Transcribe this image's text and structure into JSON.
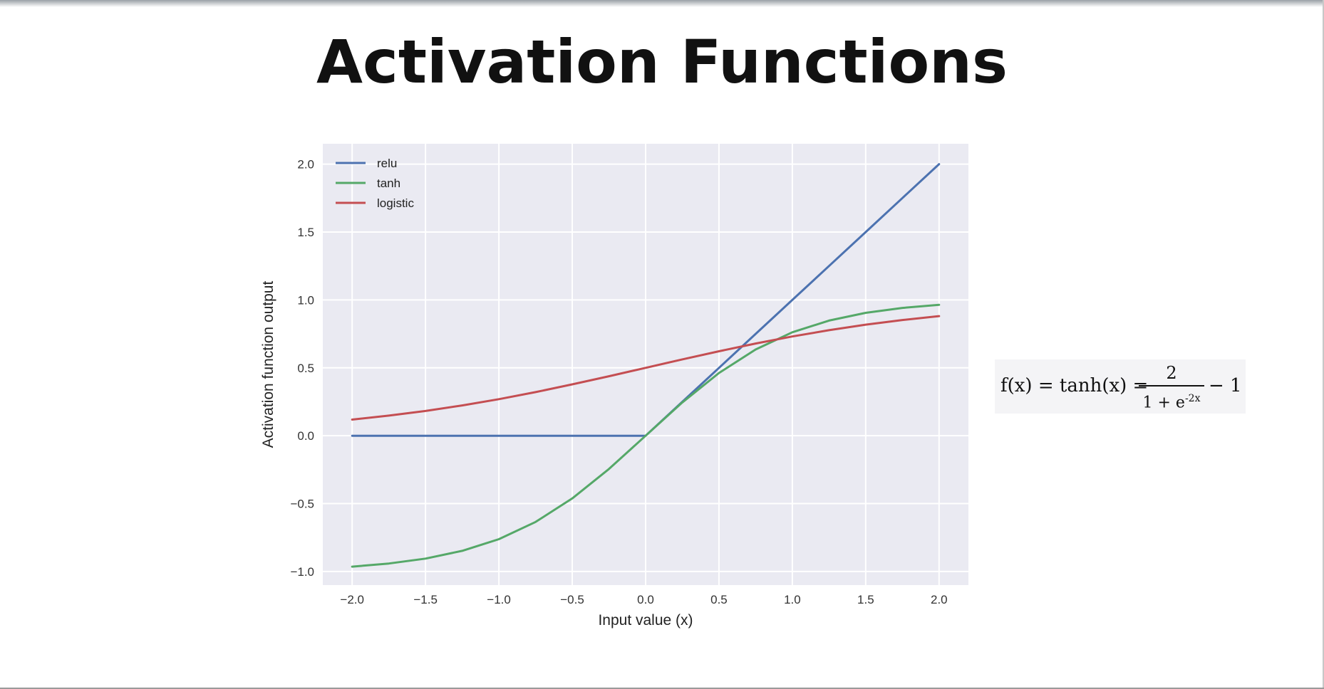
{
  "slide": {
    "title": "Activation Functions"
  },
  "formula": {
    "lhs": "f(x) = tanh(x) =",
    "numerator": "2",
    "denominator_base": "1 + e",
    "denominator_exponent": "-2x",
    "rhs": "− 1"
  },
  "colors": {
    "relu": "#4c72b0",
    "tanh": "#55a868",
    "logistic": "#c44e52",
    "plot_background": "#eaeaf2",
    "grid": "#ffffff"
  },
  "chart_data": {
    "type": "line",
    "title": "",
    "xlabel": "Input value (x)",
    "ylabel": "Activation function output",
    "xlim": [
      -2.2,
      2.2
    ],
    "ylim": [
      -1.1,
      2.15
    ],
    "grid": true,
    "legend_position": "top-left",
    "xticks": [
      -2.0,
      -1.5,
      -1.0,
      -0.5,
      0.0,
      0.5,
      1.0,
      1.5,
      2.0
    ],
    "xtick_labels": [
      "−2.0",
      "−1.5",
      "−1.0",
      "−0.5",
      "0.0",
      "0.5",
      "1.0",
      "1.5",
      "2.0"
    ],
    "yticks": [
      -1.0,
      -0.5,
      0.0,
      0.5,
      1.0,
      1.5,
      2.0
    ],
    "ytick_labels": [
      "−1.0",
      "−0.5",
      "0.0",
      "0.5",
      "1.0",
      "1.5",
      "2.0"
    ],
    "x": [
      -2.0,
      -1.75,
      -1.5,
      -1.25,
      -1.0,
      -0.75,
      -0.5,
      -0.25,
      0.0,
      0.25,
      0.5,
      0.75,
      1.0,
      1.25,
      1.5,
      1.75,
      2.0
    ],
    "series": [
      {
        "name": "relu",
        "values": [
          0,
          0,
          0,
          0,
          0,
          0,
          0,
          0,
          0,
          0.25,
          0.5,
          0.75,
          1.0,
          1.25,
          1.5,
          1.75,
          2.0
        ]
      },
      {
        "name": "tanh",
        "values": [
          -0.964,
          -0.941,
          -0.905,
          -0.848,
          -0.762,
          -0.635,
          -0.462,
          -0.245,
          0,
          0.245,
          0.462,
          0.635,
          0.762,
          0.848,
          0.905,
          0.941,
          0.964
        ]
      },
      {
        "name": "logistic",
        "values": [
          0.119,
          0.148,
          0.182,
          0.223,
          0.269,
          0.321,
          0.378,
          0.438,
          0.5,
          0.562,
          0.622,
          0.679,
          0.731,
          0.777,
          0.818,
          0.852,
          0.881
        ]
      }
    ]
  }
}
